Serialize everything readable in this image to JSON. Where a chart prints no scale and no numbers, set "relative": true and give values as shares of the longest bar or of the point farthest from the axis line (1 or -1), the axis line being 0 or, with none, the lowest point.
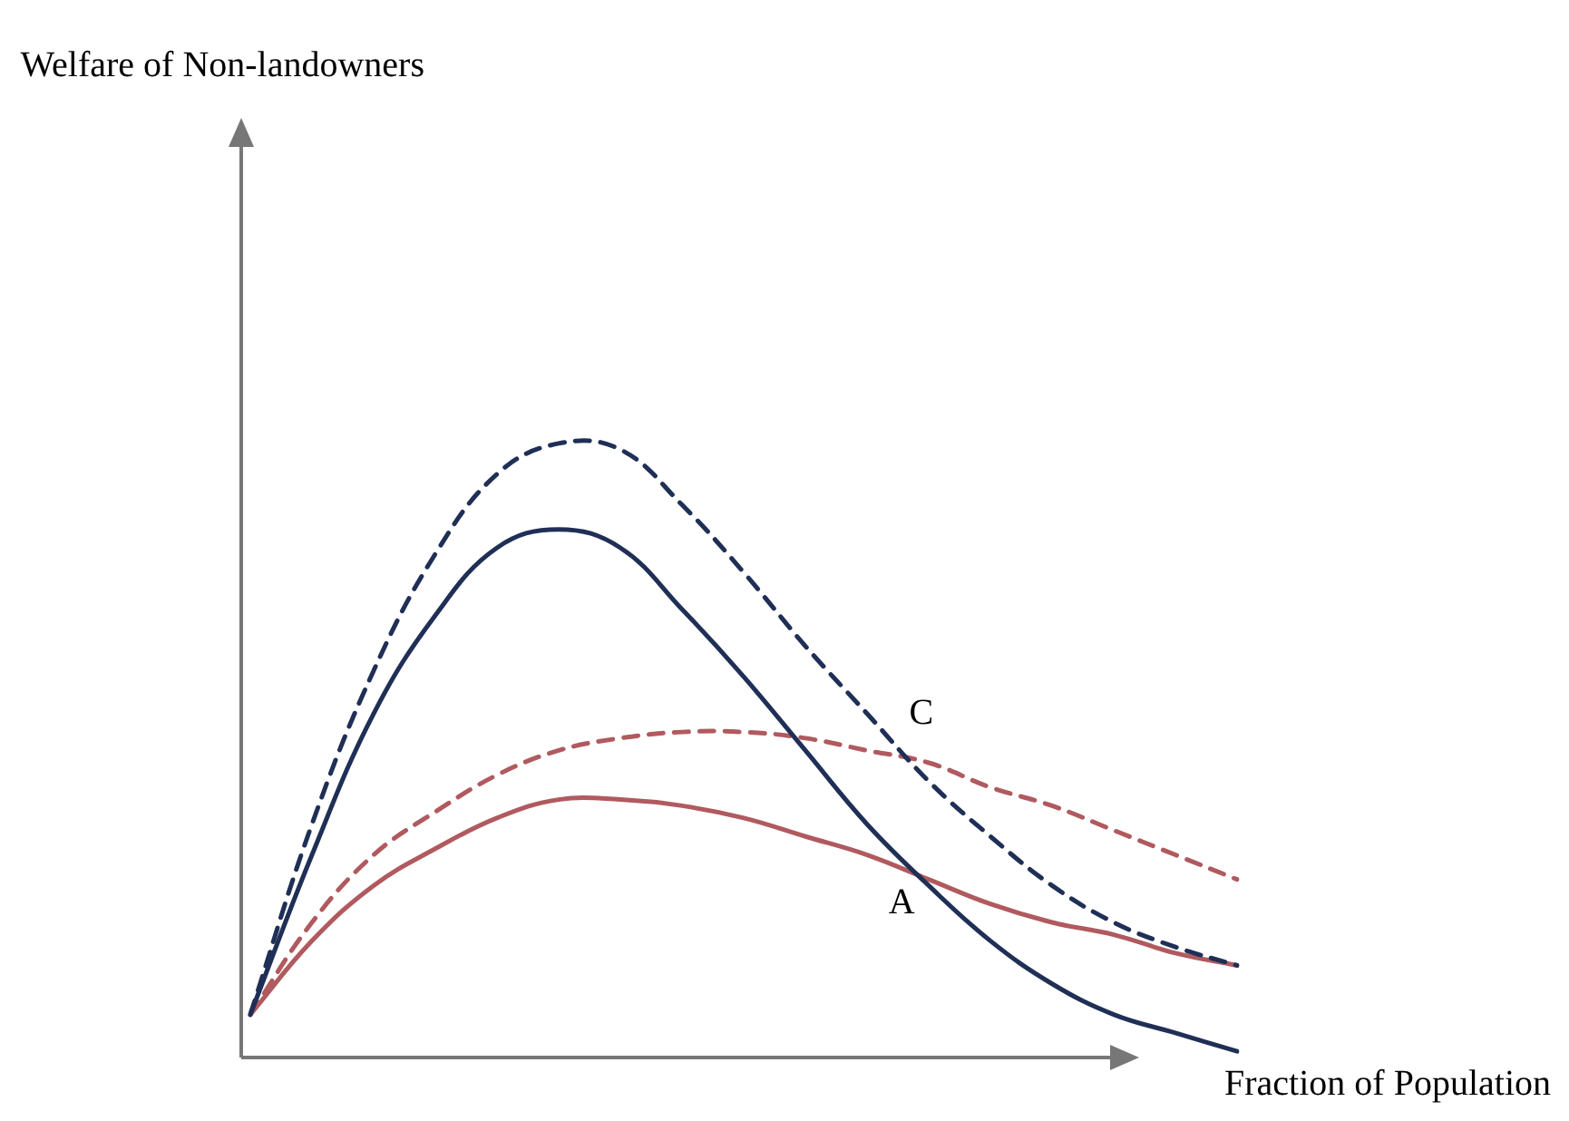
{
  "chart_data": {
    "type": "line",
    "relative": true,
    "xlabel": "Fraction of Population",
    "categories": [
      null,
      null,
      null,
      null,
      null,
      null,
      null,
      null,
      null,
      null,
      null,
      null,
      null,
      null,
      null,
      null,
      null
    ],
    "series": [
      {
        "color": "#1f2f56",
        "line_style": "solid",
        "values": [
          0.07,
          0.33,
          0.56,
          0.72,
          0.83,
          0.86,
          0.83,
          0.73,
          0.62,
          0.5,
          0.38,
          0.28,
          0.19,
          0.12,
          0.07,
          0.04,
          0.01
        ]
      },
      {
        "color": "#1f2f56",
        "line_style": "dashed",
        "values": [
          0.07,
          0.38,
          0.63,
          0.82,
          0.95,
          1.0,
          0.99,
          0.9,
          0.79,
          0.67,
          0.56,
          0.45,
          0.36,
          0.28,
          0.22,
          0.18,
          0.15
        ]
      },
      {
        "color": "#b05a5f",
        "line_style": "solid",
        "values": [
          0.07,
          0.19,
          0.28,
          0.34,
          0.39,
          0.42,
          0.42,
          0.41,
          0.39,
          0.36,
          0.33,
          0.29,
          0.25,
          0.22,
          0.2,
          0.17,
          0.15
        ]
      },
      {
        "color": "#b05a5f",
        "line_style": "dashed",
        "values": [
          0.07,
          0.22,
          0.33,
          0.4,
          0.46,
          0.5,
          0.52,
          0.53,
          0.53,
          0.52,
          0.5,
          0.48,
          0.44,
          0.41,
          0.37,
          0.33,
          0.29
        ]
      }
    ],
    "annotations": [
      "Welfare of Non-landowners",
      "C",
      "A"
    ],
    "marker": "none",
    "grid": false,
    "legend": false
  }
}
